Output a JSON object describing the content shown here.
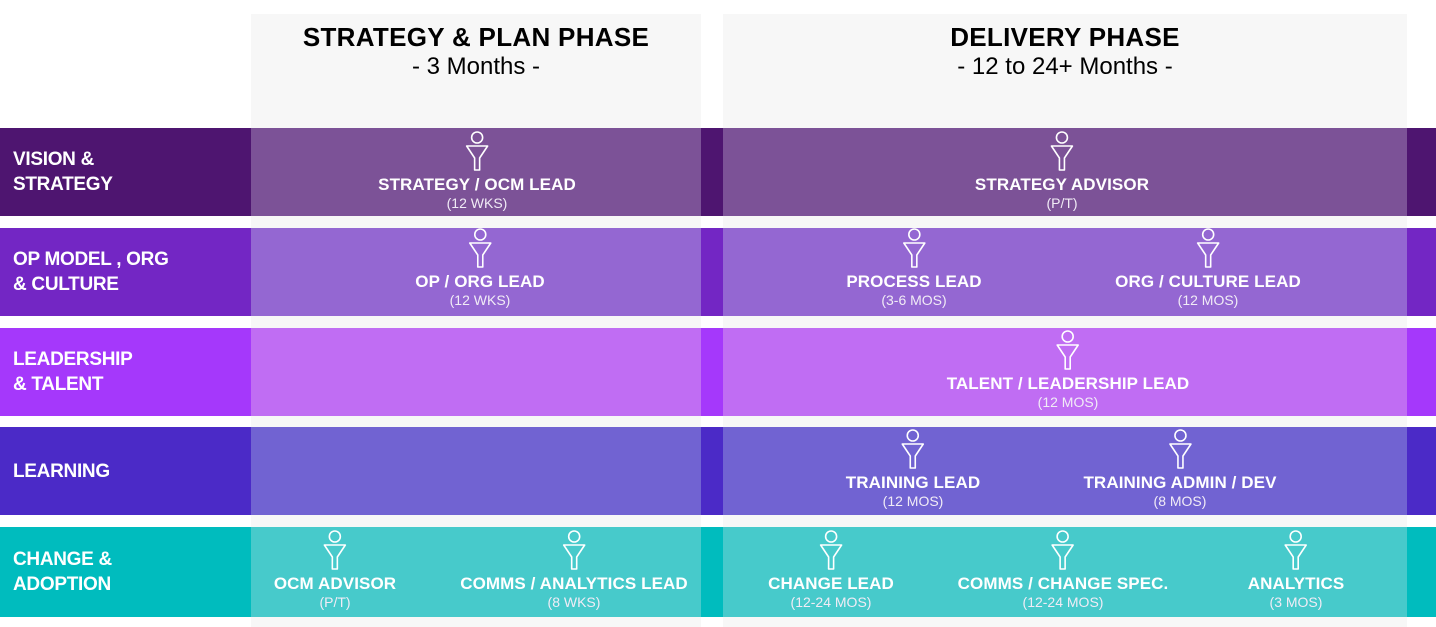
{
  "phases": [
    {
      "title": "STRATEGY & PLAN PHASE",
      "duration": "- 3 Months -"
    },
    {
      "title": "DELIVERY PHASE",
      "duration": "- 12 to 24+ Months -"
    }
  ],
  "rows": [
    {
      "label": "VISION &\nSTRATEGY",
      "colors": {
        "outer": "#4e1570",
        "inner": "#7c5297"
      },
      "roles": [
        {
          "title": "STRATEGY  / OCM LEAD",
          "duration": "(12 WKS)"
        },
        {
          "title": "STRATEGY ADVISOR",
          "duration": "(P/T)"
        }
      ]
    },
    {
      "label": "OP MODEL , ORG\n& CULTURE",
      "colors": {
        "outer": "#7326c4",
        "inner": "#9467d2"
      },
      "roles": [
        {
          "title": "OP / ORG LEAD",
          "duration": "(12 WKS)"
        },
        {
          "title": "PROCESS LEAD",
          "duration": "(3-6 MOS)"
        },
        {
          "title": "ORG / CULTURE LEAD",
          "duration": "(12 MOS)"
        }
      ]
    },
    {
      "label": "LEADERSHIP\n& TALENT",
      "colors": {
        "outer": "#a538fb",
        "inner": "#c06df3"
      },
      "roles": [
        {
          "title": "TALENT / LEADERSHIP LEAD",
          "duration": "(12 MOS)"
        }
      ]
    },
    {
      "label": "LEARNING",
      "colors": {
        "outer": "#4b2ac7",
        "inner": "#7163d2"
      },
      "roles": [
        {
          "title": "TRAINING LEAD",
          "duration": "(12 MOS)"
        },
        {
          "title": "TRAINING ADMIN / DEV",
          "duration": "(8 MOS)"
        }
      ]
    },
    {
      "label": "CHANGE &\nADOPTION",
      "colors": {
        "outer": "#00bcbe",
        "inner": "#47cacb"
      },
      "roles": [
        {
          "title": "OCM ADVISOR",
          "duration": "(P/T)"
        },
        {
          "title": "COMMS / ANALYTICS LEAD",
          "duration": "(8 WKS)"
        },
        {
          "title": "CHANGE LEAD",
          "duration": "(12-24 MOS)"
        },
        {
          "title": "COMMS  / CHANGE SPEC.",
          "duration": "(12-24 MOS)"
        },
        {
          "title": "ANALYTICS",
          "duration": "(3 MOS)"
        }
      ]
    }
  ],
  "icon": "person-icon"
}
